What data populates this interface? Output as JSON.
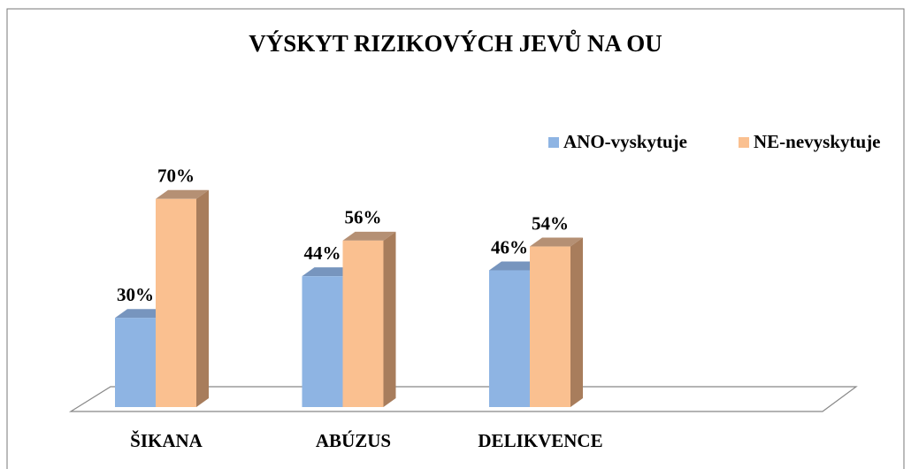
{
  "chart_data": {
    "type": "bar3d",
    "title": "VÝSKYT RIZIKOVÝCH JEVŮ NA OU",
    "categories": [
      "ŠIKANA",
      "ABÚZUS",
      "DELIKVENCE"
    ],
    "series": [
      {
        "name": "ANO-vyskytuje",
        "color": "#8eb4e3",
        "side_color": "#5f83b3",
        "values": [
          30,
          44,
          46
        ],
        "value_labels": [
          "30%",
          "44%",
          "46%"
        ]
      },
      {
        "name": "NE-nevyskytuje",
        "color": "#fac090",
        "side_color": "#a87d5c",
        "values": [
          70,
          56,
          54
        ],
        "value_labels": [
          "70%",
          "56%",
          "54%"
        ]
      }
    ],
    "legend": "top-right"
  }
}
